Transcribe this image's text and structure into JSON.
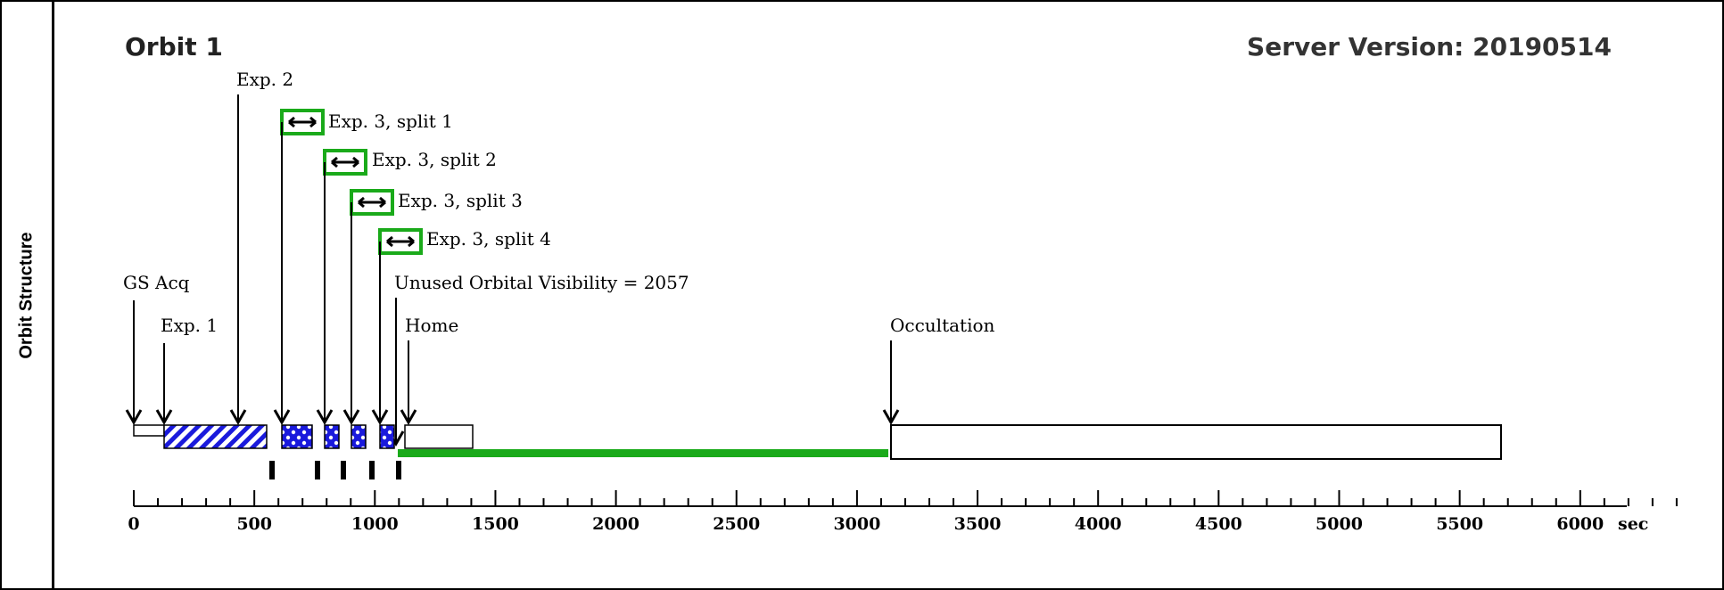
{
  "panel": {
    "side_label": "Orbit Structure",
    "title": "Orbit 1",
    "server_version": "Server Version: 20190514"
  },
  "colors": {
    "exposure_blue": "#1a1adc",
    "unused_green": "#1aaa1a",
    "split_box_green": "#1aaa1a",
    "line": "#000000"
  },
  "axis": {
    "unit_label": "sec",
    "ticks": [
      "0",
      "500",
      "1000",
      "1500",
      "2000",
      "2500",
      "3000",
      "3500",
      "4000",
      "4500",
      "5000",
      "5500",
      "6000"
    ]
  },
  "events": {
    "gs_acq": "GS Acq",
    "exp1": "Exp. 1",
    "exp2": "Exp. 2",
    "split1": "Exp. 3, split 1",
    "split2": "Exp. 3, split 2",
    "split3": "Exp. 3, split 3",
    "split4": "Exp. 3, split 4",
    "unused": "Unused Orbital Visibility = 2057",
    "home": "Home",
    "occultation": "Occultation"
  }
}
